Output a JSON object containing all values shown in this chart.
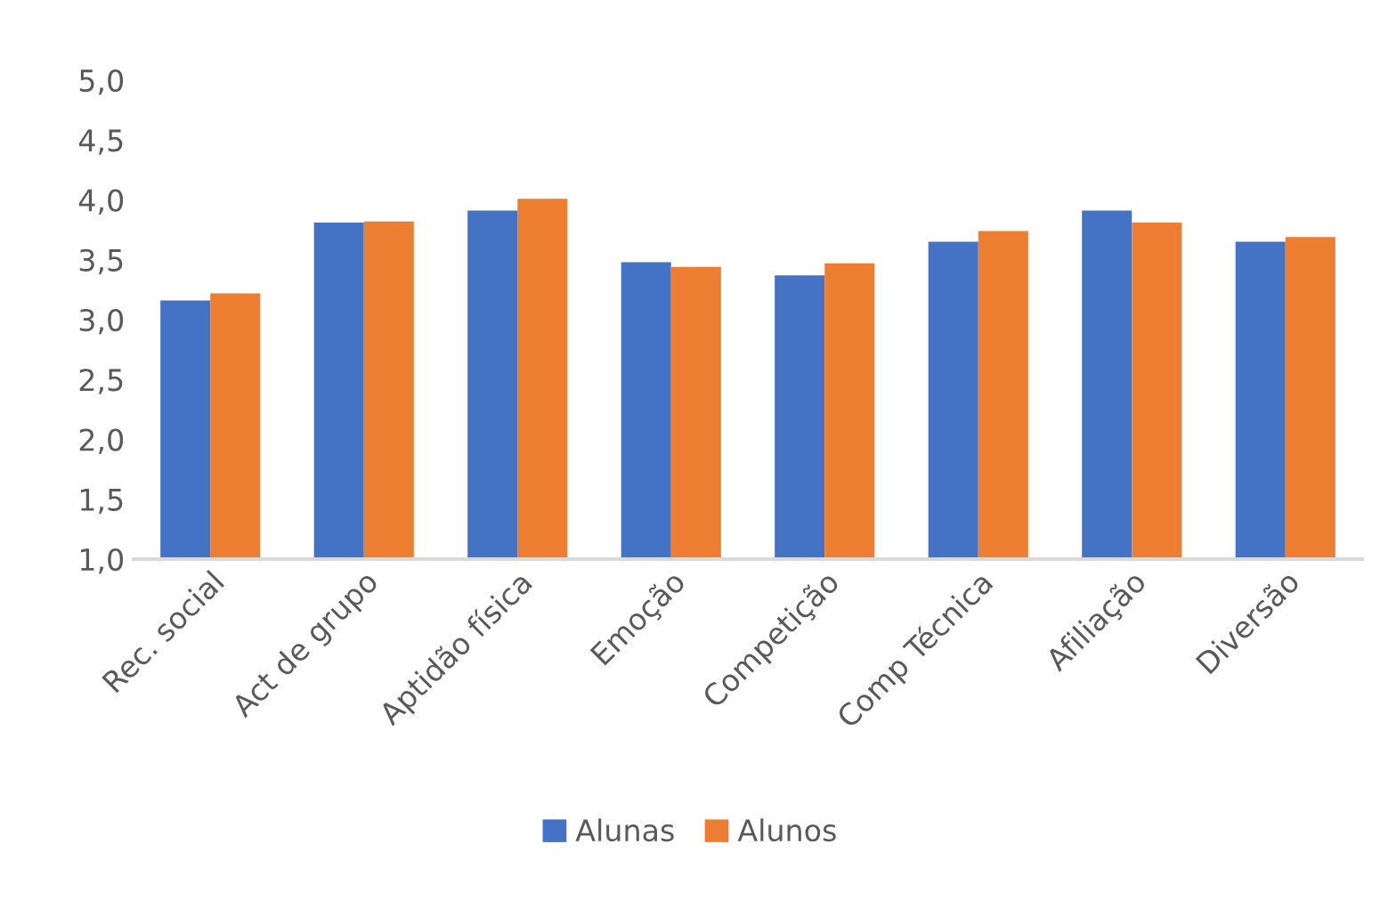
{
  "chart_data": {
    "type": "bar",
    "categories": [
      "Rec. social",
      "Act de grupo",
      "Aptidão física",
      "Emoção",
      "Competição",
      "Comp Técnica",
      "Afiliação",
      "Diversão"
    ],
    "series": [
      {
        "name": "Alunas",
        "color": "#4472c4",
        "values": [
          3.16,
          3.81,
          3.91,
          3.48,
          3.37,
          3.65,
          3.91,
          3.65
        ]
      },
      {
        "name": "Alunos",
        "color": "#ed7d31",
        "values": [
          3.22,
          3.82,
          4.01,
          3.44,
          3.47,
          3.74,
          3.81,
          3.69
        ]
      }
    ],
    "ylim": [
      1.0,
      5.0
    ],
    "yticks": [
      {
        "value": 1.0,
        "label": "1,0"
      },
      {
        "value": 1.5,
        "label": "1,5"
      },
      {
        "value": 2.0,
        "label": "2,0"
      },
      {
        "value": 2.5,
        "label": "2,5"
      },
      {
        "value": 3.0,
        "label": "3,0"
      },
      {
        "value": 3.5,
        "label": "3,5"
      },
      {
        "value": 4.0,
        "label": "4,0"
      },
      {
        "value": 4.5,
        "label": "4,5"
      },
      {
        "value": 5.0,
        "label": "5,0"
      }
    ],
    "grid": false,
    "legend": "bottom"
  }
}
